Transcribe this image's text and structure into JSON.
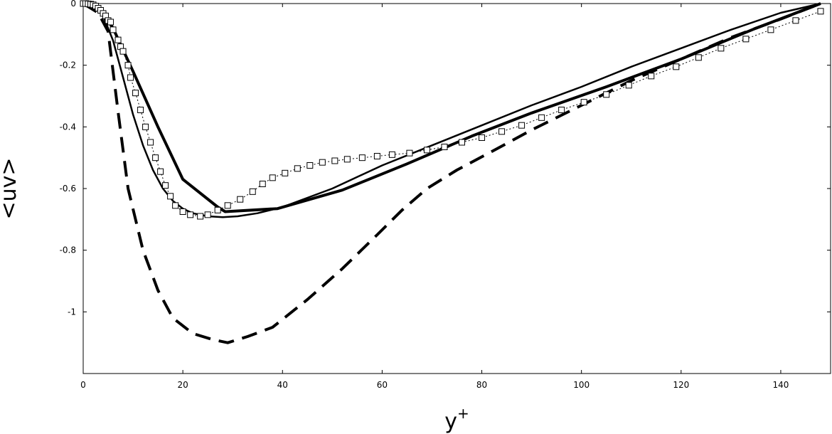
{
  "chart_data": {
    "type": "line",
    "title": "",
    "xlabel": "y",
    "xlabel_sup": "+",
    "ylabel": "<uv>",
    "xlim": [
      0,
      150
    ],
    "ylim": [
      -1.2,
      0
    ],
    "xticks": [
      0,
      20,
      40,
      60,
      80,
      100,
      120,
      140
    ],
    "yticks": [
      0,
      -0.2,
      -0.4,
      -0.6,
      -0.8,
      -1
    ],
    "ytick_labels": [
      "0",
      "-0.2",
      "-0.4",
      "-0.6",
      "-0.8",
      "-1"
    ],
    "grid": false,
    "series": [
      {
        "style": "thick-solid",
        "x": [
          0,
          2,
          4,
          6,
          10,
          15,
          20,
          27,
          28.5,
          39,
          52,
          65,
          78,
          90,
          105,
          120,
          135,
          148
        ],
        "y": [
          0,
          -0.005,
          -0.03,
          -0.08,
          -0.22,
          -0.4,
          -0.57,
          -0.66,
          -0.675,
          -0.665,
          -0.605,
          -0.52,
          -0.43,
          -0.355,
          -0.27,
          -0.18,
          -0.08,
          0
        ]
      },
      {
        "style": "thin-solid",
        "x": [
          0,
          2,
          4,
          6,
          8,
          10,
          12,
          14,
          16,
          18,
          20,
          22,
          25,
          28,
          31,
          35,
          40,
          50,
          60,
          70,
          80,
          90,
          100,
          110,
          120,
          130,
          140,
          148
        ],
        "y": [
          0,
          -0.005,
          -0.04,
          -0.12,
          -0.24,
          -0.36,
          -0.46,
          -0.54,
          -0.6,
          -0.64,
          -0.665,
          -0.68,
          -0.69,
          -0.693,
          -0.69,
          -0.68,
          -0.66,
          -0.6,
          -0.525,
          -0.46,
          -0.395,
          -0.33,
          -0.27,
          -0.205,
          -0.145,
          -0.085,
          -0.03,
          0
        ]
      },
      {
        "style": "thick-dashed",
        "x": [
          0,
          3,
          5,
          7,
          9,
          12,
          15,
          18,
          22,
          26,
          29,
          33,
          38,
          45,
          52,
          59,
          64,
          69,
          75,
          82,
          90,
          100,
          110,
          120,
          130,
          140,
          148
        ],
        "y": [
          0,
          -0.03,
          -0.09,
          -0.35,
          -0.6,
          -0.8,
          -0.93,
          -1.02,
          -1.07,
          -1.09,
          -1.1,
          -1.08,
          -1.05,
          -0.96,
          -0.86,
          -0.75,
          -0.67,
          -0.6,
          -0.54,
          -0.48,
          -0.41,
          -0.33,
          -0.25,
          -0.18,
          -0.11,
          -0.05,
          0
        ]
      },
      {
        "style": "dotted-squares",
        "x": [
          0,
          0.5,
          1,
          1.5,
          2,
          2.5,
          3,
          3.5,
          4,
          4.5,
          5,
          5.5,
          6,
          7,
          7.5,
          8,
          9,
          9.5,
          10.5,
          11.5,
          12.5,
          13.5,
          14.5,
          15.5,
          16.5,
          17.5,
          18.5,
          20,
          21.5,
          23.5,
          25,
          27,
          29,
          31.5,
          34,
          36,
          38,
          40.5,
          43,
          45.5,
          48,
          50.5,
          53,
          56,
          59,
          62,
          65.5,
          69,
          72.5,
          76,
          80,
          84,
          88,
          92,
          96,
          100.5,
          105,
          109.5,
          114,
          119,
          123.5,
          128,
          133,
          138,
          143,
          148
        ],
        "y": [
          0,
          0,
          -0.001,
          -0.002,
          -0.004,
          -0.008,
          -0.015,
          -0.022,
          -0.032,
          -0.04,
          -0.055,
          -0.06,
          -0.085,
          -0.118,
          -0.14,
          -0.155,
          -0.2,
          -0.24,
          -0.29,
          -0.345,
          -0.4,
          -0.45,
          -0.5,
          -0.545,
          -0.59,
          -0.625,
          -0.655,
          -0.675,
          -0.685,
          -0.69,
          -0.685,
          -0.67,
          -0.655,
          -0.635,
          -0.61,
          -0.585,
          -0.565,
          -0.55,
          -0.535,
          -0.525,
          -0.515,
          -0.51,
          -0.505,
          -0.5,
          -0.495,
          -0.49,
          -0.485,
          -0.475,
          -0.465,
          -0.45,
          -0.435,
          -0.415,
          -0.395,
          -0.37,
          -0.345,
          -0.32,
          -0.295,
          -0.265,
          -0.235,
          -0.205,
          -0.175,
          -0.145,
          -0.115,
          -0.085,
          -0.055,
          -0.025
        ]
      }
    ]
  }
}
